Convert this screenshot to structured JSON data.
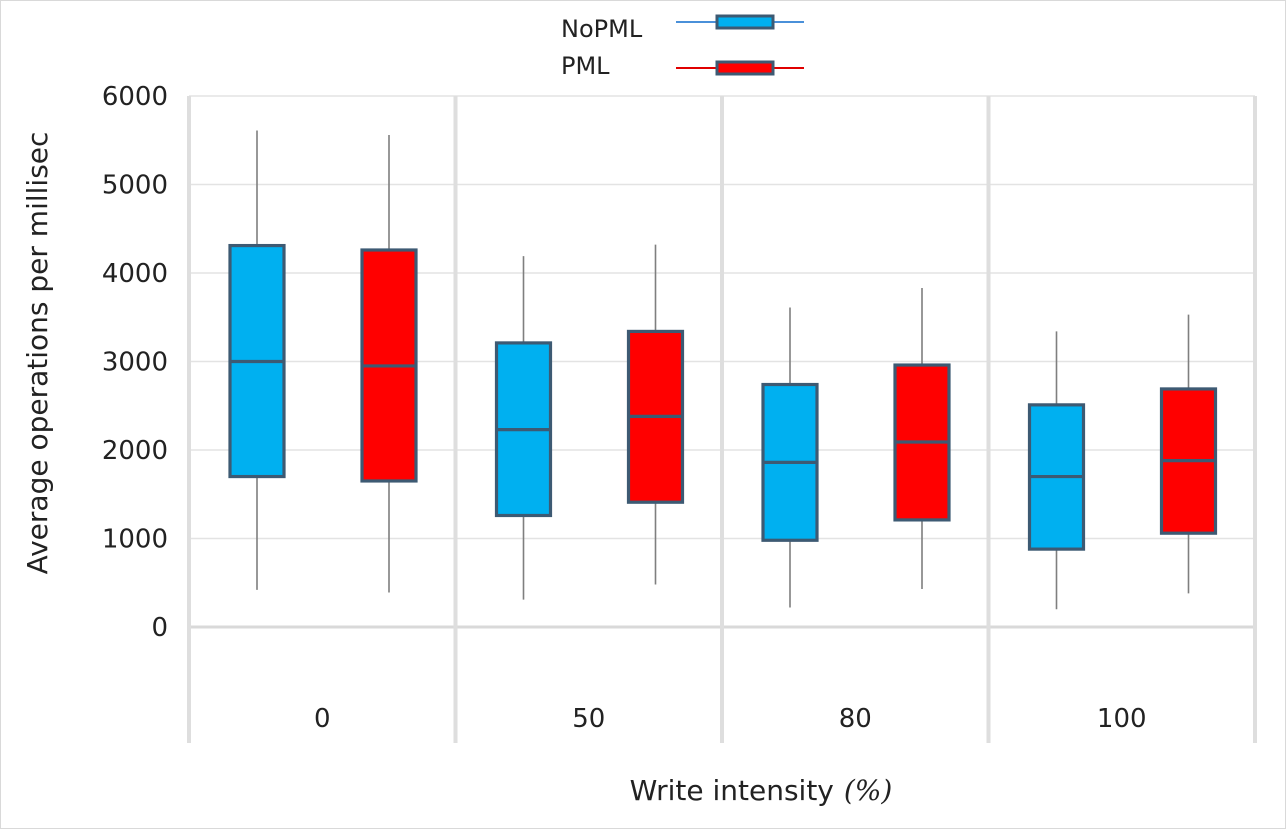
{
  "chart_data": {
    "type": "box",
    "title": "",
    "xlabel": "Write intensity",
    "xlabel_unit": "(%)",
    "ylabel": "Average operations per millisec",
    "ylim": [
      0,
      6000
    ],
    "yticks": [
      0,
      1000,
      2000,
      3000,
      4000,
      5000,
      6000
    ],
    "categories": [
      "0",
      "50",
      "80",
      "100"
    ],
    "grid": true,
    "legend_position": "top-center",
    "series": [
      {
        "name": "NoPML",
        "color": "#00b0f0",
        "boxes": [
          {
            "min": 420,
            "q1": 1700,
            "median": 3000,
            "q3": 4310,
            "max": 5610
          },
          {
            "min": 310,
            "q1": 1260,
            "median": 2230,
            "q3": 3210,
            "max": 4190
          },
          {
            "min": 220,
            "q1": 980,
            "median": 1860,
            "q3": 2740,
            "max": 3610
          },
          {
            "min": 200,
            "q1": 880,
            "median": 1700,
            "q3": 2510,
            "max": 3340
          }
        ]
      },
      {
        "name": "PML",
        "color": "#ff0000",
        "boxes": [
          {
            "min": 390,
            "q1": 1650,
            "median": 2950,
            "q3": 4260,
            "max": 5560
          },
          {
            "min": 480,
            "q1": 1410,
            "median": 2380,
            "q3": 3340,
            "max": 4320
          },
          {
            "min": 430,
            "q1": 1210,
            "median": 2090,
            "q3": 2960,
            "max": 3830
          },
          {
            "min": 380,
            "q1": 1060,
            "median": 1880,
            "q3": 2690,
            "max": 3530
          }
        ]
      }
    ]
  }
}
